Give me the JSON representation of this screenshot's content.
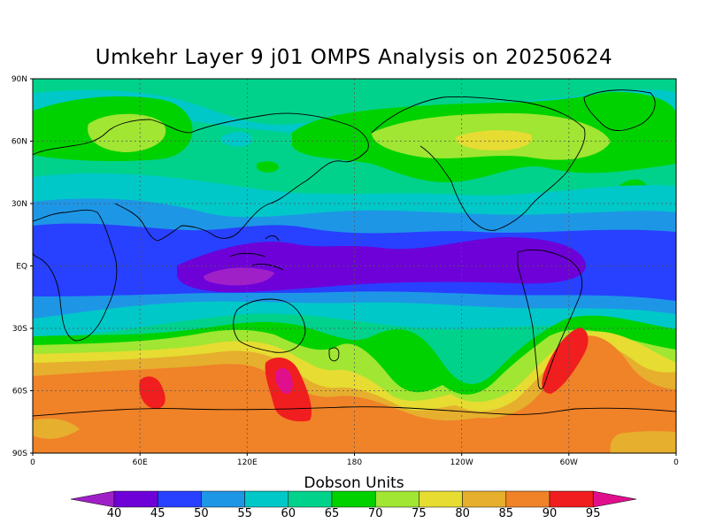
{
  "title": "Umkehr Layer 9 j01 OMPS Analysis on 20250624",
  "colorbar": {
    "title": "Dobson Units",
    "levels": [
      "40",
      "45",
      "50",
      "55",
      "60",
      "65",
      "70",
      "75",
      "80",
      "85",
      "90",
      "95"
    ],
    "colors": [
      "#a020c8",
      "#6e00d8",
      "#2840ff",
      "#1e96e6",
      "#00c8c8",
      "#00d28c",
      "#00d200",
      "#a0e632",
      "#e6dc32",
      "#e6af2d",
      "#f08228",
      "#f01e1e",
      "#e0108c"
    ]
  },
  "axes": {
    "lat_labels": [
      "90N",
      "60N",
      "30N",
      "EQ",
      "30S",
      "60S",
      "90S"
    ],
    "lon_labels": [
      "0",
      "60E",
      "120E",
      "180",
      "120W",
      "60W",
      "0"
    ]
  },
  "colors": {
    "background": "#00d28c",
    "grid": "#555555"
  }
}
